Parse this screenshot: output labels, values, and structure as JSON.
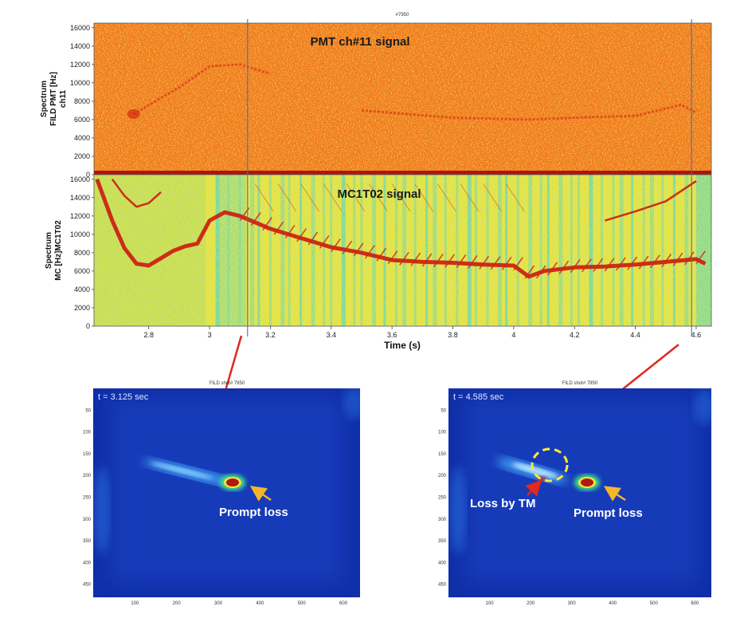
{
  "chart_data": [
    {
      "type": "heatmap",
      "figure_label": "#7950",
      "title": "PMT ch#11 signal",
      "ylabel": [
        "Spectrum",
        "FILD PMT [Hz]",
        "ch11"
      ],
      "xlim": [
        2.62,
        4.65
      ],
      "ylim": [
        0,
        16500
      ],
      "yticks": [
        0,
        2000,
        4000,
        6000,
        8000,
        10000,
        12000,
        14000,
        16000
      ],
      "colors": {
        "background": "#ef7a1c",
        "speckle": "#f5c52c",
        "feature": "#cf1d10"
      },
      "features": [
        {
          "name": "mode-trace",
          "x": [
            2.75,
            2.9,
            3.0,
            3.1,
            3.2
          ],
          "y": [
            6600,
            9500,
            11800,
            12000,
            11000
          ]
        },
        {
          "name": "mode-trace",
          "x": [
            3.5,
            3.8,
            4.05,
            4.2,
            4.4,
            4.55,
            4.6
          ],
          "y": [
            7000,
            6200,
            6000,
            6200,
            6400,
            7600,
            6800
          ]
        }
      ]
    },
    {
      "type": "heatmap",
      "title": "MC1T02 signal",
      "ylabel": [
        "Spectrum",
        "MC [Hz]MC1T02"
      ],
      "xlabel": "Time (s)",
      "xlim": [
        2.62,
        4.65
      ],
      "ylim": [
        0,
        16500
      ],
      "xticks": [
        2.8,
        3.0,
        3.2,
        3.4,
        3.6,
        3.8,
        4.0,
        4.2,
        4.4,
        4.6
      ],
      "xtick_labels": [
        "2.8",
        "3",
        "3.2",
        "3.4",
        "3.6",
        "3.8",
        "4",
        "4.2",
        "4.4",
        "4.6"
      ],
      "yticks": [
        0,
        2000,
        4000,
        6000,
        8000,
        10000,
        12000,
        14000,
        16000
      ],
      "colors": {
        "background": "#e9e23a",
        "speckle": "#84d97a",
        "band": "#70d6a3",
        "feature": "#cc1a10"
      },
      "series": [
        {
          "name": "main-mode",
          "x": [
            2.63,
            2.68,
            2.72,
            2.76,
            2.8,
            2.84,
            2.88,
            2.92,
            2.96,
            3.0,
            3.05,
            3.1,
            3.2,
            3.3,
            3.4,
            3.5,
            3.6,
            3.7,
            3.8,
            3.9,
            4.0,
            4.05,
            4.1,
            4.2,
            4.3,
            4.4,
            4.5,
            4.6,
            4.63
          ],
          "y": [
            16000,
            11500,
            8500,
            6800,
            6600,
            7400,
            8200,
            8700,
            9000,
            11500,
            12400,
            12000,
            10600,
            9600,
            8600,
            8000,
            7200,
            7000,
            6900,
            6700,
            6600,
            5400,
            6000,
            6400,
            6500,
            6700,
            7000,
            7300,
            6800
          ]
        },
        {
          "name": "upper-branch",
          "x": [
            2.68,
            2.72,
            2.76,
            2.8,
            2.84
          ],
          "y": [
            16000,
            14200,
            13000,
            13400,
            14600
          ]
        },
        {
          "name": "rising-harmonic",
          "x": [
            4.3,
            4.4,
            4.5,
            4.6
          ],
          "y": [
            11500,
            12500,
            13600,
            15800
          ]
        }
      ],
      "markers": [
        {
          "name": "time-cursor",
          "x": 3.125
        },
        {
          "name": "time-cursor",
          "x": 4.585
        }
      ]
    },
    {
      "type": "heatmap",
      "title": "FILD shot# 7950",
      "time_label": "t = 3.125 sec",
      "xticks": [
        100,
        200,
        300,
        400,
        500,
        600
      ],
      "yticks": [
        50,
        100,
        150,
        200,
        250,
        300,
        350,
        400,
        450
      ],
      "xlim": [
        0,
        640
      ],
      "ylim": [
        480,
        0
      ],
      "colors": {
        "background": "#102fa8",
        "glow": "#4ab3ff",
        "hot": "#b01a10"
      },
      "spots": [
        {
          "name": "prompt-loss",
          "x": 336,
          "y": 213,
          "intensity": "high"
        },
        {
          "name": "streak",
          "x": 225,
          "y": 190,
          "intensity": "medium"
        }
      ],
      "annotations": [
        {
          "text": "Prompt loss",
          "target": "prompt-loss"
        }
      ]
    },
    {
      "type": "heatmap",
      "title": "FILD shot# 7950",
      "time_label": "t = 4.585 sec",
      "xticks": [
        100,
        200,
        300,
        400,
        500,
        600
      ],
      "yticks": [
        50,
        100,
        150,
        200,
        250,
        300,
        350,
        400,
        450
      ],
      "xlim": [
        0,
        640
      ],
      "ylim": [
        480,
        0
      ],
      "colors": {
        "background": "#102fa8",
        "glow": "#4ab3ff",
        "hot": "#b01a10",
        "circle": "#ffe83a",
        "arrow": "#f4b52a"
      },
      "spots": [
        {
          "name": "prompt-loss",
          "x": 336,
          "y": 213,
          "intensity": "high"
        },
        {
          "name": "loss-by-tm",
          "x": 225,
          "y": 195,
          "intensity": "medium"
        }
      ],
      "annotations": [
        {
          "text": "Loss by TM",
          "target": "loss-by-tm"
        },
        {
          "text": "Prompt loss",
          "target": "prompt-loss"
        }
      ]
    }
  ],
  "connectors": {
    "color": "#e0281c"
  }
}
